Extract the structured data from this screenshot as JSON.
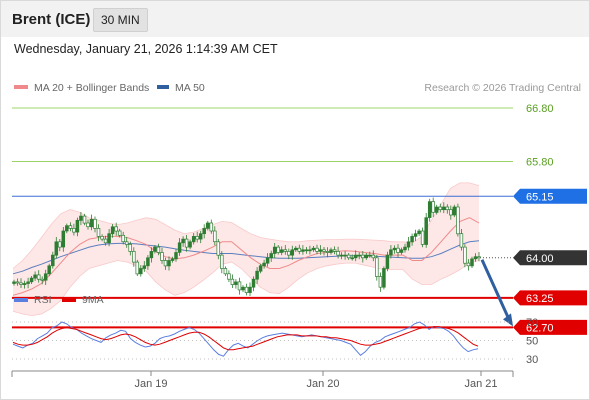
{
  "header": {
    "symbol": "Brent (ICE)",
    "timeframe": "30 MIN"
  },
  "datetime": "Wednesday, January 21, 2026 1:14:39 AM CET",
  "credit": "Research © 2026 Trading Central",
  "legend": {
    "ma20_bb": "MA 20 + Bollinger Bands",
    "ma50": "MA 50",
    "rsi": "RSI",
    "ma9": "9MA"
  },
  "colors": {
    "candle": "#2e7d32",
    "ma20": "#f08a8a",
    "bands_fill": "#fde3e3",
    "ma50": "#5b7fbf",
    "resistance_green": "#9cd46b",
    "resistance_blue": "#3d6fd6",
    "support_red": "#e00000",
    "last_price": "#333333",
    "arrow": "#2f5f9e",
    "rsi": "#5b7fe0",
    "rsi_ma": "#e00000"
  },
  "chart_data": [
    {
      "type": "candlestick",
      "title": "",
      "x_labels": [
        "Jan 19",
        "Jan 20",
        "Jan 21"
      ],
      "y_range": [
        62.5,
        67.2
      ],
      "levels": [
        {
          "value": 66.8,
          "label": "66.80",
          "kind": "resistance"
        },
        {
          "value": 65.8,
          "label": "65.80",
          "kind": "resistance"
        },
        {
          "value": 65.15,
          "label": "65.15",
          "kind": "pivot"
        },
        {
          "value": 64.0,
          "label": "64.00",
          "kind": "last_price"
        },
        {
          "value": 63.25,
          "label": "63.25",
          "kind": "support"
        },
        {
          "value": 62.7,
          "label": "62.70",
          "kind": "support"
        }
      ],
      "candles_close": [
        63.55,
        63.53,
        63.5,
        63.52,
        63.55,
        63.62,
        63.68,
        63.6,
        63.58,
        63.7,
        63.85,
        64.05,
        64.3,
        64.2,
        64.5,
        64.6,
        64.55,
        64.48,
        64.7,
        64.78,
        64.65,
        64.58,
        64.72,
        64.55,
        64.4,
        64.35,
        64.28,
        64.45,
        64.58,
        64.5,
        64.42,
        64.3,
        64.25,
        64.12,
        63.92,
        63.7,
        63.8,
        63.85,
        64.0,
        64.12,
        64.2,
        64.1,
        63.95,
        63.85,
        63.95,
        63.98,
        64.1,
        64.28,
        64.35,
        64.2,
        64.3,
        64.4,
        64.35,
        64.45,
        64.55,
        64.65,
        64.5,
        64.3,
        64.05,
        63.8,
        63.7,
        63.6,
        63.5,
        63.55,
        63.4,
        63.45,
        63.35,
        63.45,
        63.6,
        63.75,
        63.85,
        63.9,
        64.0,
        64.08,
        64.2,
        64.1,
        64.15,
        64.12,
        64.05,
        64.15,
        64.18,
        64.12,
        64.15,
        64.15,
        64.15,
        64.18,
        64.12,
        64.15,
        64.12,
        64.1,
        64.15,
        64.12,
        64.05,
        64.05,
        64.05,
        64.0,
        64.0,
        64.05,
        64.05,
        64.0,
        64.05,
        64.05,
        64.0,
        63.65,
        63.45,
        63.8,
        64.05,
        64.15,
        64.18,
        64.1,
        64.15,
        64.2,
        64.3,
        64.4,
        64.45,
        64.5,
        64.25,
        64.75,
        65.05,
        64.85,
        64.95,
        64.9,
        64.95,
        64.9,
        64.8,
        64.95,
        64.45,
        64.2,
        63.9,
        63.85,
        63.98,
        64.02,
        64.0
      ],
      "ma20": [
        63.3,
        63.35,
        63.42,
        63.52,
        63.7,
        63.9,
        64.1,
        64.25,
        64.35,
        64.38,
        64.4,
        64.4,
        64.38,
        64.32,
        64.25,
        64.12,
        64.02,
        63.98,
        64.0,
        64.05,
        64.12,
        64.2,
        64.3,
        64.3,
        64.15,
        64.0,
        63.88,
        63.8,
        63.8,
        63.86,
        63.95,
        64.02,
        64.08,
        64.1,
        64.12,
        64.13,
        64.12,
        64.1,
        64.08,
        64.05,
        64.05,
        64.05,
        63.95,
        63.95,
        64.1,
        64.3,
        64.5,
        64.68,
        64.75,
        64.65
      ],
      "ma50": [
        63.7,
        63.75,
        63.82,
        63.88,
        63.95,
        64.02,
        64.08,
        64.14,
        64.2,
        64.24,
        64.26,
        64.27,
        64.27,
        64.26,
        64.24,
        64.22,
        64.2,
        64.17,
        64.14,
        64.12,
        64.1,
        64.08,
        64.08,
        64.08,
        64.06,
        64.04,
        64.02,
        64.0,
        63.99,
        63.99,
        63.99,
        64.0,
        64.01,
        64.02,
        64.03,
        64.04,
        64.04,
        64.04,
        64.03,
        64.02,
        64.01,
        64.0,
        63.99,
        63.99,
        64.02,
        64.08,
        64.16,
        64.24,
        64.3,
        64.32
      ],
      "bb_upper": [
        63.8,
        63.95,
        64.15,
        64.38,
        64.62,
        64.82,
        64.9,
        64.85,
        64.75,
        64.7,
        64.65,
        64.62,
        64.65,
        64.7,
        64.75,
        64.72,
        64.62,
        64.52,
        64.45,
        64.48,
        64.55,
        64.62,
        64.68,
        64.66,
        64.55,
        64.45,
        64.38,
        64.35,
        64.32,
        64.3,
        64.3,
        64.32,
        64.33,
        64.34,
        64.34,
        64.35,
        64.35,
        64.34,
        64.33,
        64.32,
        64.3,
        64.3,
        64.28,
        64.4,
        64.7,
        65.0,
        65.3,
        65.4,
        65.4,
        65.35
      ],
      "bb_lower": [
        63.0,
        62.95,
        62.92,
        62.95,
        63.05,
        63.2,
        63.45,
        63.65,
        63.8,
        63.85,
        63.9,
        63.95,
        63.92,
        63.85,
        63.75,
        63.55,
        63.4,
        63.3,
        63.35,
        63.45,
        63.58,
        63.72,
        63.88,
        63.92,
        63.8,
        63.62,
        63.45,
        63.35,
        63.33,
        63.45,
        63.6,
        63.72,
        63.8,
        63.85,
        63.88,
        63.9,
        63.9,
        63.86,
        63.82,
        63.78,
        63.78,
        63.78,
        63.6,
        63.5,
        63.5,
        63.6,
        63.68,
        63.78,
        63.9,
        63.95
      ],
      "projection": {
        "from": 64.0,
        "to": 62.7
      }
    },
    {
      "type": "line",
      "title": "",
      "y_ticks": [
        70,
        50,
        30
      ],
      "y_range": [
        25,
        78
      ],
      "series": [
        {
          "name": "RSI",
          "values": [
            46,
            44,
            42,
            45,
            47,
            52,
            55,
            58,
            64,
            66,
            70,
            68,
            64,
            62,
            58,
            55,
            52,
            50,
            48,
            53,
            56,
            58,
            61,
            60,
            52,
            48,
            45,
            43,
            44,
            47,
            52,
            54,
            55,
            57,
            60,
            62,
            64,
            62,
            58,
            52,
            46,
            40,
            35,
            33,
            40,
            45,
            47,
            44,
            42,
            46,
            50,
            53,
            55,
            56,
            57,
            58,
            57,
            56,
            55,
            54,
            55,
            56,
            55,
            54,
            53,
            52,
            51,
            50,
            48,
            46,
            40,
            34,
            38,
            44,
            48,
            50,
            54,
            56,
            58,
            60,
            62,
            64,
            68,
            70,
            67,
            62,
            65,
            64,
            63,
            60,
            55,
            48,
            42,
            38,
            40,
            41
          ]
        },
        {
          "name": "9MA",
          "values": [
            48,
            46,
            45,
            45,
            46,
            48,
            51,
            54,
            58,
            61,
            63,
            64,
            63,
            62,
            60,
            58,
            56,
            54,
            52,
            51,
            52,
            54,
            56,
            57,
            56,
            54,
            51,
            48,
            46,
            45,
            46,
            48,
            50,
            52,
            54,
            56,
            58,
            59,
            59,
            57,
            54,
            50,
            46,
            42,
            40,
            40,
            41,
            42,
            43,
            44,
            46,
            48,
            50,
            52,
            54,
            55,
            56,
            56,
            56,
            55,
            55,
            55,
            55,
            54,
            54,
            53,
            53,
            52,
            51,
            50,
            48,
            46,
            45,
            45,
            46,
            47,
            49,
            51,
            53,
            55,
            57,
            59,
            61,
            63,
            64,
            64,
            65,
            65,
            64,
            63,
            61,
            58,
            54,
            50,
            46,
            44
          ]
        }
      ]
    }
  ]
}
